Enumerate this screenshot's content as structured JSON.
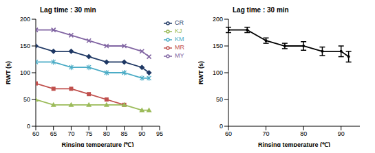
{
  "chart_data": [
    {
      "type": "line",
      "title": "Lag time : 30 min",
      "x_label": "Rinsing temperature (℃)",
      "y_label": "RWT (s)",
      "x": [
        60,
        65,
        70,
        75,
        80,
        85,
        90,
        92
      ],
      "xlim": [
        60,
        95
      ],
      "xticks": [
        60,
        65,
        70,
        75,
        80,
        85,
        90,
        95
      ],
      "ylim": [
        0,
        200
      ],
      "yticks": [
        0,
        50,
        100,
        150,
        200
      ],
      "legend": "right",
      "series": [
        {
          "name": "CR",
          "color": "#1f3864",
          "marker": "diamond",
          "values": [
            150,
            140,
            140,
            130,
            120,
            120,
            110,
            100
          ]
        },
        {
          "name": "MR",
          "color": "#c0504d",
          "marker": "square",
          "values": [
            80,
            70,
            70,
            60,
            50,
            40,
            null,
            null
          ]
        },
        {
          "name": "KJ",
          "color": "#9bbb59",
          "marker": "triangle",
          "values": [
            50,
            40,
            40,
            40,
            40,
            40,
            30,
            30
          ]
        },
        {
          "name": "MY",
          "color": "#8064a2",
          "marker": "x",
          "values": [
            180,
            180,
            170,
            160,
            150,
            150,
            140,
            130
          ]
        },
        {
          "name": "KM",
          "color": "#4bacc6",
          "marker": "star",
          "values": [
            120,
            120,
            110,
            110,
            100,
            100,
            90,
            90
          ]
        }
      ]
    },
    {
      "type": "line",
      "title": "Lag time : 30 min",
      "x_label": "Rinsing temperature (℃)",
      "y_label": "RWT (s)",
      "x": [
        60,
        65,
        70,
        75,
        80,
        85,
        90,
        92
      ],
      "xlim": [
        60,
        95
      ],
      "xticks": [
        60,
        70,
        80,
        90
      ],
      "ylim": [
        0,
        200
      ],
      "yticks": [
        0,
        50,
        100,
        150,
        200
      ],
      "series": [
        {
          "color": "#000000",
          "marker": "circle",
          "values": [
            180,
            180,
            160,
            150,
            150,
            140,
            140,
            130
          ],
          "errors": [
            5,
            5,
            5,
            5,
            8,
            8,
            10,
            10
          ]
        }
      ]
    }
  ]
}
